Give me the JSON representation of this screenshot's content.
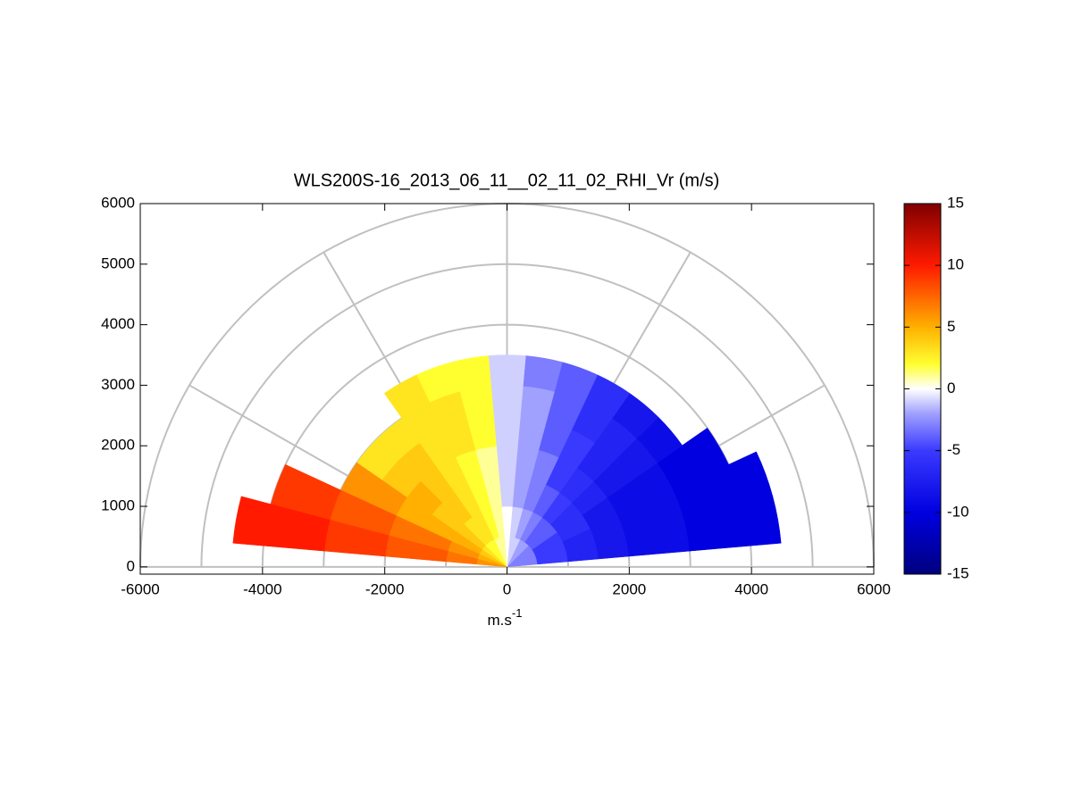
{
  "chart_data": {
    "type": "polar_heatmap",
    "title": "WLS200S-16_2013_06_11__02_11_02_RHI_Vr (m/s)",
    "xlabel": [
      "m.s",
      "-1"
    ],
    "xlim": [
      -6000,
      6000
    ],
    "xticks": [
      -6000,
      -4000,
      -2000,
      0,
      2000,
      4000,
      6000
    ],
    "ylim": [
      -120,
      6000
    ],
    "yticks": [
      0,
      1000,
      2000,
      3000,
      4000,
      5000,
      6000
    ],
    "rgrid": [
      1000,
      2000,
      3000,
      4000,
      5000,
      6000
    ],
    "thetagrid": [
      0,
      30,
      60,
      90,
      120,
      150,
      180
    ],
    "grid_color": "#c0c0c0",
    "angle_width": 10,
    "range_width": 500,
    "angles": [
      10,
      20,
      30,
      40,
      50,
      60,
      70,
      80,
      90,
      100,
      110,
      120,
      130,
      140,
      150,
      160,
      170
    ],
    "ranges": [
      250,
      750,
      1250,
      1750,
      2250,
      2750,
      3250,
      3750,
      4250
    ],
    "values": [
      [
        -3,
        -5,
        -7,
        -8,
        -9,
        -9,
        -10,
        -10,
        -10
      ],
      [
        -3,
        -5,
        -7,
        -8,
        -9,
        -9,
        -10,
        -10,
        -10
      ],
      [
        -3,
        -5,
        -6,
        -8,
        -9,
        -9,
        -10,
        -10,
        null
      ],
      [
        -3,
        -4,
        -6,
        -7,
        -8,
        -8,
        -9,
        null,
        null
      ],
      [
        -2,
        -4,
        -5,
        -6,
        -7,
        -7,
        -8,
        null,
        null
      ],
      [
        -2,
        -3,
        -4,
        -5,
        -5,
        -6,
        -6,
        null,
        null
      ],
      [
        -1,
        -2,
        -3,
        -3,
        -4,
        -4,
        -4,
        null,
        null
      ],
      [
        -1,
        -1,
        -2,
        -2,
        -2,
        -2,
        -3,
        null,
        null
      ],
      [
        0,
        0,
        -1,
        -1,
        -1,
        -1,
        -1,
        null,
        null
      ],
      [
        1,
        1,
        1,
        1,
        2,
        2,
        2,
        null,
        null
      ],
      [
        1,
        2,
        2,
        2,
        3,
        3,
        2,
        null,
        null
      ],
      [
        2,
        3,
        3,
        3,
        3,
        3,
        3,
        null,
        null
      ],
      [
        2,
        3,
        4,
        4,
        4,
        3,
        null,
        null,
        null
      ],
      [
        3,
        4,
        4,
        5,
        4,
        3,
        null,
        null,
        null
      ],
      [
        4,
        5,
        5,
        5,
        6,
        6,
        null,
        null,
        null
      ],
      [
        5,
        6,
        7,
        7,
        8,
        8,
        9,
        9,
        null
      ],
      [
        6,
        7,
        8,
        8,
        9,
        9,
        10,
        10,
        10
      ]
    ],
    "clim": [
      -15,
      15
    ],
    "cticks": [
      -15,
      -10,
      -5,
      0,
      5,
      10,
      15
    ],
    "colormap": [
      {
        "value": -15,
        "color": "#00007f"
      },
      {
        "value": -10,
        "color": "#0000e0"
      },
      {
        "value": -5,
        "color": "#3a3aff"
      },
      {
        "value": -2,
        "color": "#a0a0ff"
      },
      {
        "value": 0,
        "color": "#ffffff"
      },
      {
        "value": 2,
        "color": "#ffff30"
      },
      {
        "value": 5,
        "color": "#ffb000"
      },
      {
        "value": 10,
        "color": "#ff1a00"
      },
      {
        "value": 15,
        "color": "#7f0000"
      }
    ]
  }
}
